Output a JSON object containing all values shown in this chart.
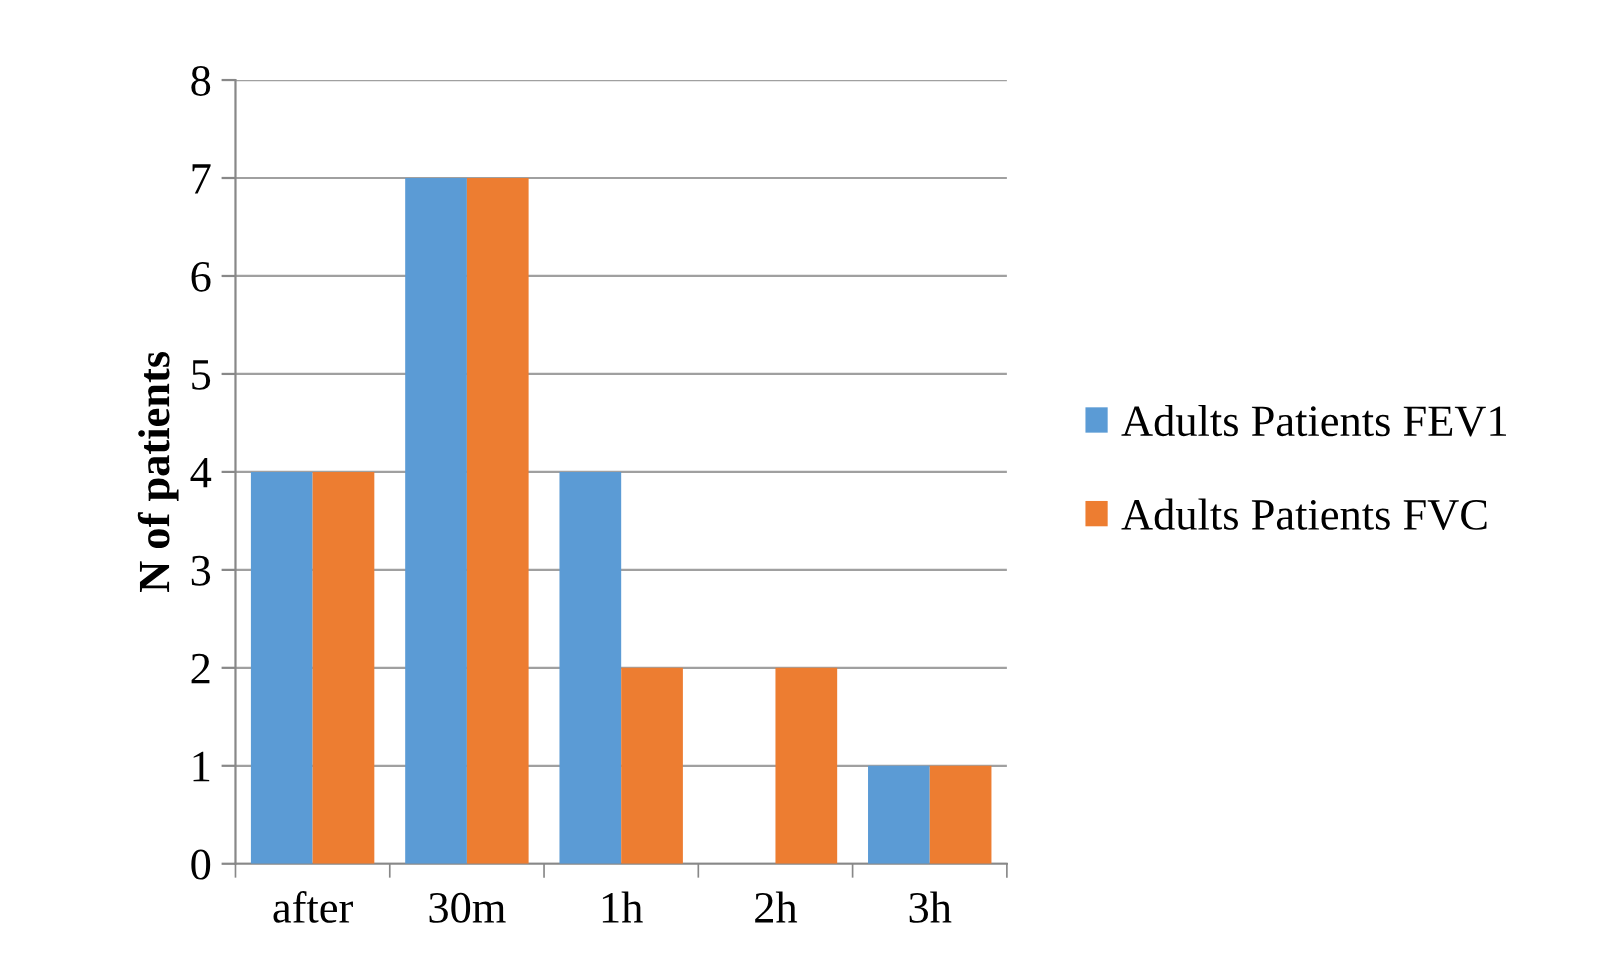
{
  "chart_data": {
    "type": "bar",
    "ylabel": "N of patients",
    "categories": [
      "after",
      "30m",
      "1h",
      "2h",
      "3h"
    ],
    "series": [
      {
        "name": "Adults Patients FEV1",
        "color": "#5b9bd5",
        "values": [
          4,
          7,
          4,
          0,
          1
        ]
      },
      {
        "name": "Adults Patients FVC",
        "color": "#ed7d31",
        "values": [
          4,
          7,
          2,
          2,
          1
        ]
      }
    ],
    "ylim": [
      0,
      8
    ],
    "yticks": [
      0,
      1,
      2,
      3,
      4,
      5,
      6,
      7,
      8
    ],
    "grid": "y",
    "legend": "right"
  }
}
